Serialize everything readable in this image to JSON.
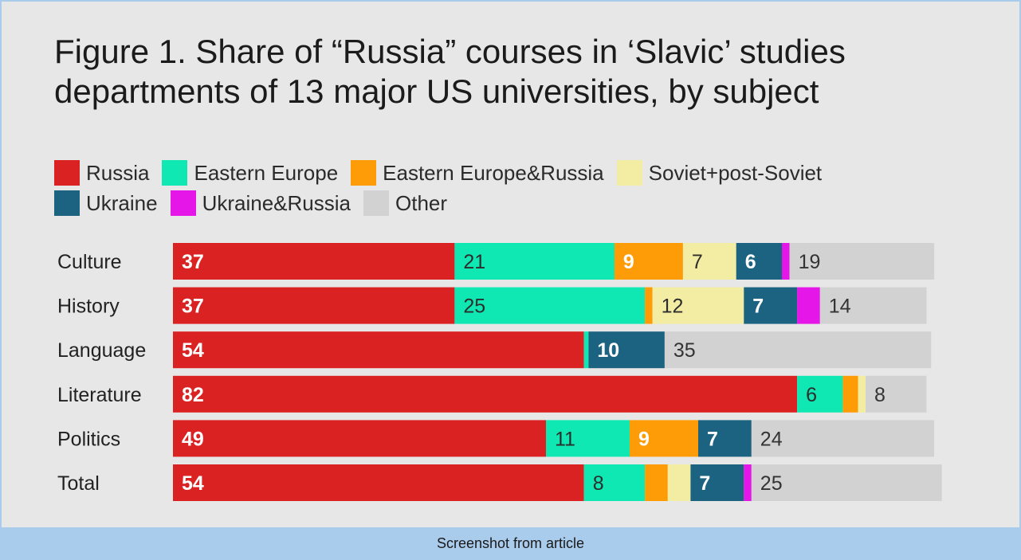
{
  "footer": {
    "caption": "Screenshot from article"
  },
  "chart_data": {
    "type": "bar",
    "orientation": "horizontal",
    "stacked": true,
    "title": "Figure 1. Share of “Russia” courses in ‘Slavic’ studies\ndepartments of 13 major US universities, by subject",
    "categories": [
      "Culture",
      "History",
      "Language",
      "Literature",
      "Politics",
      "Total"
    ],
    "series": [
      {
        "name": "Russia",
        "color": "#db2222",
        "label_color": "#ffffff",
        "values": [
          37,
          37,
          54,
          82,
          49,
          54
        ],
        "labels": [
          "37",
          "37",
          "54",
          "82",
          "49",
          "54"
        ]
      },
      {
        "name": "Eastern Europe",
        "color": "#0fe8b2",
        "label_color": "#2d2d2d",
        "values": [
          21,
          25,
          0.6,
          6,
          11,
          8
        ],
        "labels": [
          "21",
          "25",
          "",
          "6",
          "11",
          "8"
        ]
      },
      {
        "name": "Eastern Europe&Russia",
        "color": "#fd9c07",
        "label_color": "#ffffff",
        "values": [
          9,
          1,
          0,
          2,
          9,
          3
        ],
        "labels": [
          "9",
          "",
          "",
          "",
          "9",
          ""
        ]
      },
      {
        "name": "Soviet+post-Soviet",
        "color": "#f3eda3",
        "label_color": "#2d2d2d",
        "values": [
          7,
          12,
          0,
          1,
          0,
          3
        ],
        "labels": [
          "7",
          "12",
          "",
          "",
          "",
          ""
        ]
      },
      {
        "name": "Ukraine",
        "color": "#1b6380",
        "label_color": "#ffffff",
        "values": [
          6,
          7,
          10,
          0,
          7,
          7
        ],
        "labels": [
          "6",
          "7",
          "10",
          "",
          "7",
          "7"
        ]
      },
      {
        "name": "Ukraine&Russia",
        "color": "#e516e8",
        "label_color": "#ffffff",
        "values": [
          1,
          3,
          0,
          0,
          0,
          1
        ],
        "labels": [
          "",
          "",
          "",
          "",
          "",
          ""
        ]
      },
      {
        "name": "Other",
        "color": "#d2d2d2",
        "label_color": "#333333",
        "values": [
          19,
          14,
          35,
          8,
          24,
          25
        ],
        "labels": [
          "19",
          "14",
          "35",
          "8",
          "24",
          "25"
        ]
      }
    ],
    "legend_position": "top-left",
    "grid": false,
    "xlim": [
      0,
      100
    ]
  }
}
